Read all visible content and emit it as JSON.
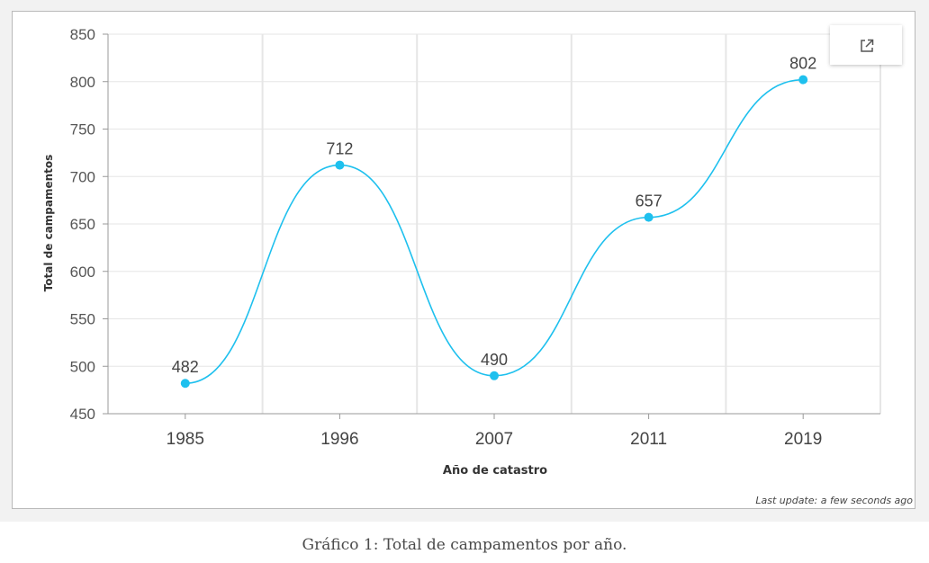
{
  "chart_data": {
    "type": "line",
    "categories": [
      "1985",
      "1996",
      "2007",
      "2011",
      "2019"
    ],
    "values": [
      482,
      712,
      490,
      657,
      802
    ],
    "ylim": [
      450,
      850
    ],
    "yticks": [
      450,
      500,
      550,
      600,
      650,
      700,
      750,
      800,
      850
    ],
    "ylabel": "Total de campamentos",
    "xlabel": "Año de catastro",
    "data_labels": true,
    "grid": true,
    "smooth": true,
    "color": "#1ec0ee"
  },
  "footer": {
    "last_update": "Last update: a few seconds ago"
  },
  "caption": "Gráfico 1: Total de campamentos por año.",
  "popout": {
    "icon": "open-external-icon"
  }
}
